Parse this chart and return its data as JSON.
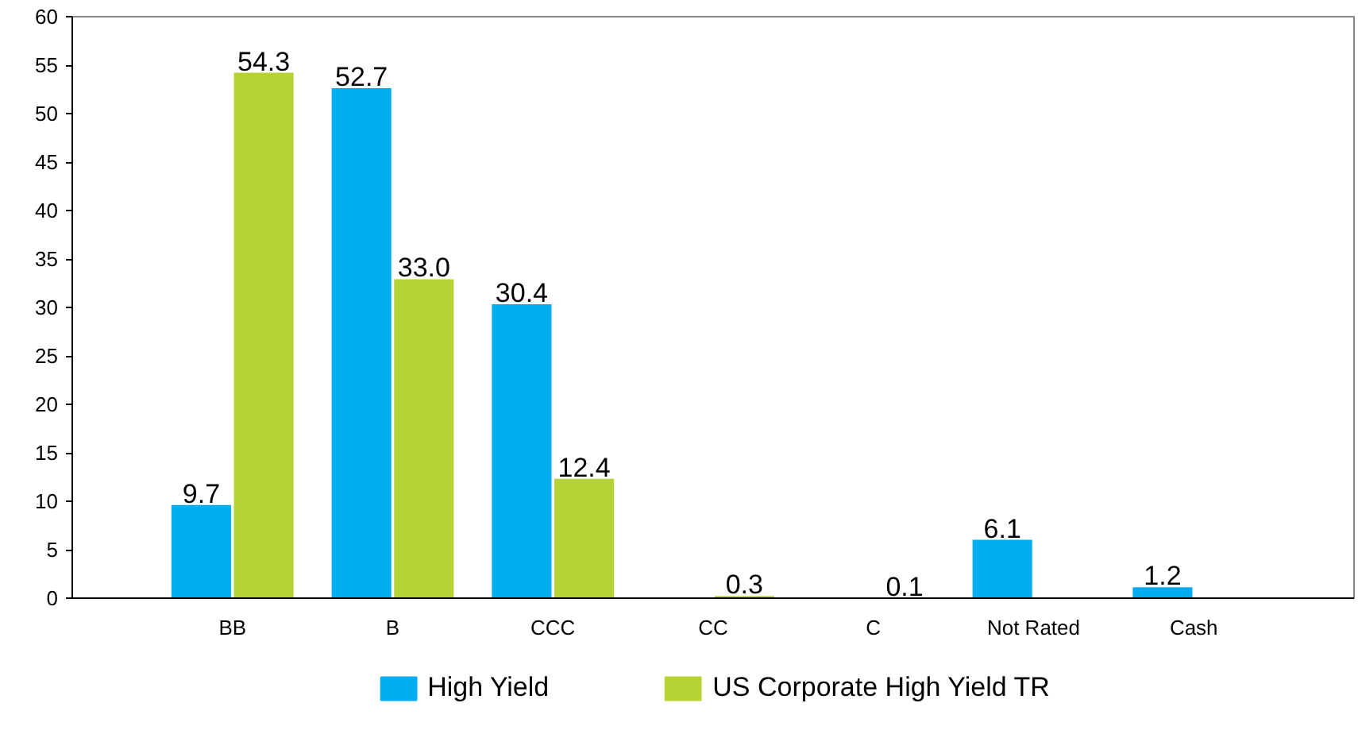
{
  "chart_data": {
    "type": "bar",
    "categories": [
      "BB",
      "B",
      "CCC",
      "CC",
      "C",
      "Not Rated",
      "Cash"
    ],
    "series": [
      {
        "name": "High Yield",
        "color": "#00aeef",
        "values": [
          9.7,
          52.7,
          30.4,
          null,
          null,
          6.1,
          1.2
        ],
        "value_labels": [
          "9.7",
          "52.7",
          "30.4",
          null,
          null,
          "6.1",
          "1.2"
        ]
      },
      {
        "name": "US Corporate High Yield TR",
        "color": "#b5d334",
        "values": [
          54.3,
          33.0,
          12.4,
          0.3,
          0.1,
          null,
          null
        ],
        "value_labels": [
          "54.3",
          "33.0",
          "12.4",
          "0.3",
          "0.1",
          null,
          null
        ]
      }
    ],
    "ylim": [
      0,
      60
    ],
    "yticks": [
      0,
      5,
      10,
      15,
      20,
      25,
      30,
      35,
      40,
      45,
      50,
      55,
      60
    ],
    "grid": false,
    "legend": "bottom"
  }
}
